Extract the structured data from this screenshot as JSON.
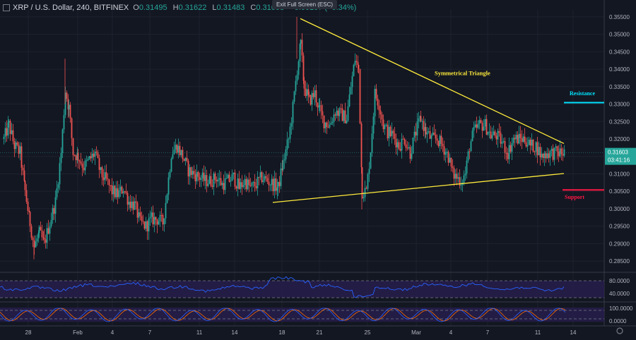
{
  "header": {
    "symbol": "XRP / U.S. Dollar, 240, BITFINEX",
    "open_key": "O",
    "open": "0.31495",
    "high_key": "H",
    "high": "0.31622",
    "low_key": "L",
    "low": "0.31483",
    "close_key": "C",
    "close": "0.31603",
    "change": "+0.00107 (+0.34%)"
  },
  "exit_full_screen": "Exit Full Screen (ESC)",
  "colors": {
    "background": "#131722",
    "up": "#26a69a",
    "down": "#ef5350",
    "trendline": "#ffeb3b",
    "resistance": "#00e5ff",
    "support": "#ff1744",
    "rsi": "#2962ff",
    "stoch_k": "#2962ff",
    "stoch_d": "#ff6d00",
    "panel": "#2a1f52"
  },
  "chart_data": {
    "type": "candlestick",
    "y_ticks": [
      "0.35500",
      "0.35000",
      "0.34500",
      "0.34000",
      "0.33500",
      "0.33000",
      "0.32500",
      "0.32000",
      "0.31500",
      "0.31000",
      "0.30500",
      "0.30000",
      "0.29500",
      "0.29000",
      "0.28500"
    ],
    "ylim": [
      0.283,
      0.357
    ],
    "x_ticks": [
      {
        "label": "28",
        "pos": 40
      },
      {
        "label": "Feb",
        "pos": 110
      },
      {
        "label": "4",
        "pos": 159
      },
      {
        "label": "7",
        "pos": 212
      },
      {
        "label": "11",
        "pos": 282
      },
      {
        "label": "14",
        "pos": 332
      },
      {
        "label": "18",
        "pos": 399
      },
      {
        "label": "21",
        "pos": 452
      },
      {
        "label": "25",
        "pos": 520
      },
      {
        "label": "Mar",
        "pos": 589
      },
      {
        "label": "4",
        "pos": 638
      },
      {
        "label": "7",
        "pos": 690
      },
      {
        "label": "11",
        "pos": 761
      },
      {
        "label": "14",
        "pos": 811
      }
    ],
    "anchors": [
      [
        5,
        0.32
      ],
      [
        12,
        0.324
      ],
      [
        20,
        0.318
      ],
      [
        28,
        0.316
      ],
      [
        35,
        0.305
      ],
      [
        42,
        0.296
      ],
      [
        48,
        0.289
      ],
      [
        55,
        0.293
      ],
      [
        62,
        0.29
      ],
      [
        70,
        0.296
      ],
      [
        78,
        0.302
      ],
      [
        86,
        0.316
      ],
      [
        92,
        0.334
      ],
      [
        97,
        0.329
      ],
      [
        103,
        0.316
      ],
      [
        110,
        0.315
      ],
      [
        118,
        0.312
      ],
      [
        126,
        0.314
      ],
      [
        134,
        0.316
      ],
      [
        142,
        0.31
      ],
      [
        150,
        0.308
      ],
      [
        158,
        0.305
      ],
      [
        166,
        0.304
      ],
      [
        174,
        0.306
      ],
      [
        182,
        0.302
      ],
      [
        190,
        0.301
      ],
      [
        198,
        0.296
      ],
      [
        206,
        0.295
      ],
      [
        214,
        0.297
      ],
      [
        222,
        0.297
      ],
      [
        230,
        0.296
      ],
      [
        236,
        0.305
      ],
      [
        242,
        0.316
      ],
      [
        250,
        0.318
      ],
      [
        258,
        0.315
      ],
      [
        266,
        0.311
      ],
      [
        274,
        0.31
      ],
      [
        282,
        0.309
      ],
      [
        290,
        0.308
      ],
      [
        298,
        0.308
      ],
      [
        306,
        0.309
      ],
      [
        314,
        0.307
      ],
      [
        322,
        0.308
      ],
      [
        330,
        0.309
      ],
      [
        338,
        0.306
      ],
      [
        346,
        0.308
      ],
      [
        354,
        0.306
      ],
      [
        362,
        0.307
      ],
      [
        370,
        0.309
      ],
      [
        378,
        0.308
      ],
      [
        386,
        0.307
      ],
      [
        393,
        0.306
      ],
      [
        400,
        0.313
      ],
      [
        408,
        0.32
      ],
      [
        414,
        0.329
      ],
      [
        420,
        0.34
      ],
      [
        425,
        0.347
      ],
      [
        430,
        0.335
      ],
      [
        437,
        0.331
      ],
      [
        445,
        0.333
      ],
      [
        452,
        0.328
      ],
      [
        458,
        0.325
      ],
      [
        466,
        0.324
      ],
      [
        474,
        0.328
      ],
      [
        482,
        0.327
      ],
      [
        490,
        0.326
      ],
      [
        496,
        0.335
      ],
      [
        502,
        0.343
      ],
      [
        507,
        0.34
      ],
      [
        512,
        0.305
      ],
      [
        518,
        0.305
      ],
      [
        524,
        0.317
      ],
      [
        530,
        0.333
      ],
      [
        536,
        0.33
      ],
      [
        542,
        0.324
      ],
      [
        548,
        0.322
      ],
      [
        556,
        0.321
      ],
      [
        564,
        0.318
      ],
      [
        572,
        0.32
      ],
      [
        580,
        0.316
      ],
      [
        588,
        0.322
      ],
      [
        595,
        0.326
      ],
      [
        602,
        0.322
      ],
      [
        610,
        0.32
      ],
      [
        618,
        0.32
      ],
      [
        626,
        0.318
      ],
      [
        634,
        0.315
      ],
      [
        640,
        0.31
      ],
      [
        646,
        0.309
      ],
      [
        652,
        0.308
      ],
      [
        658,
        0.31
      ],
      [
        664,
        0.318
      ],
      [
        670,
        0.322
      ],
      [
        678,
        0.324
      ],
      [
        686,
        0.324
      ],
      [
        694,
        0.321
      ],
      [
        702,
        0.321
      ],
      [
        710,
        0.319
      ],
      [
        718,
        0.316
      ],
      [
        726,
        0.32
      ],
      [
        734,
        0.32
      ],
      [
        742,
        0.32
      ],
      [
        750,
        0.318
      ],
      [
        758,
        0.318
      ],
      [
        766,
        0.315
      ],
      [
        774,
        0.316
      ],
      [
        782,
        0.316
      ],
      [
        790,
        0.316
      ],
      [
        798,
        0.316
      ]
    ],
    "price_label": "0.31603",
    "countdown_label": "03:41:16",
    "rsi_ticks": [
      "80.0000",
      "40.0000"
    ],
    "stoch_ticks": [
      "100.0000",
      "0.0000"
    ]
  },
  "annotations": {
    "triangle_label": "Symmetrical Triangle",
    "resistance_label": "Resistance",
    "support_label": "Support"
  }
}
